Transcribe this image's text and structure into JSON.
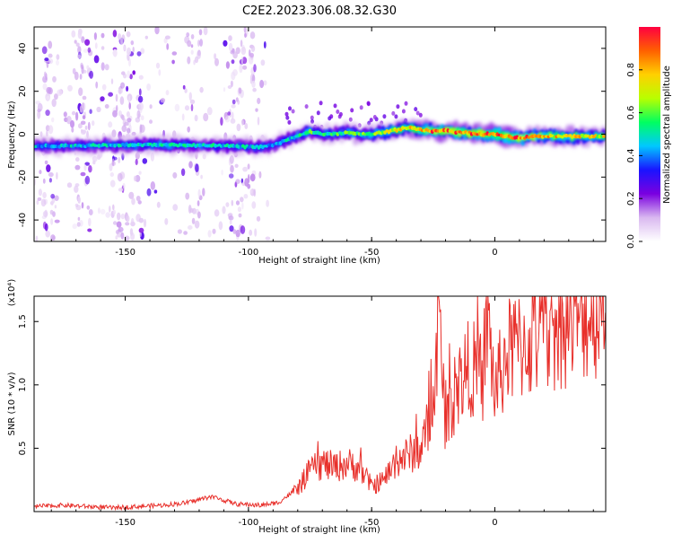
{
  "title": "C2E2.2023.306.08.32.G30",
  "colors": {
    "snr_line": "#e8302b",
    "axis": "#000000",
    "background": "#ffffff"
  },
  "colorbar": {
    "label": "Normalized spectral amplitude",
    "range": [
      0,
      1
    ],
    "ticks": [
      0.0,
      0.2,
      0.4,
      0.6,
      0.8
    ],
    "tick_labels": [
      "0.0",
      "0.2",
      "0.4",
      "0.6",
      "0.8"
    ],
    "stops": [
      "#ffffff",
      "#d9b8f0",
      "#7a00e0",
      "#1a14ff",
      "#00c8ff",
      "#00ff60",
      "#b8ff00",
      "#ffd000",
      "#ff6000",
      "#ff0040"
    ]
  },
  "chart_data": [
    {
      "type": "heatmap",
      "title": "C2E2.2023.306.08.32.G30",
      "xlabel": "Height of straight line (km)",
      "ylabel": "Frequency (Hz)",
      "xlim": [
        -187,
        45
      ],
      "ylim": [
        -50,
        50
      ],
      "x_ticks": [
        -150,
        -100,
        -50,
        0
      ],
      "x_tick_labels": [
        "-150",
        "-100",
        "-50",
        "0"
      ],
      "y_ticks": [
        -40,
        -20,
        0,
        20,
        40
      ],
      "y_tick_labels": [
        "-40",
        "-20",
        "0",
        "20",
        "40"
      ],
      "ridge": {
        "x": [
          -187,
          -170,
          -150,
          -130,
          -110,
          -95,
          -90,
          -85,
          -80,
          -75,
          -70,
          -65,
          -60,
          -55,
          -50,
          -45,
          -40,
          -35,
          -30,
          -25,
          -20,
          -15,
          -10,
          -5,
          0,
          5,
          10,
          15,
          20,
          30,
          45
        ],
        "frequency": [
          -5.5,
          -5.5,
          -5,
          -5,
          -5.5,
          -6,
          -5,
          -3,
          -1,
          1,
          0,
          0,
          1,
          0,
          0,
          1,
          2,
          3,
          2,
          1.5,
          1.5,
          1,
          0.5,
          0,
          0,
          -1,
          -2,
          -1,
          -1,
          -1,
          -1
        ],
        "amplitude": [
          0.45,
          0.5,
          0.5,
          0.55,
          0.5,
          0.5,
          0.45,
          0.5,
          0.55,
          0.6,
          0.55,
          0.6,
          0.6,
          0.6,
          0.65,
          0.7,
          0.75,
          0.85,
          0.8,
          0.95,
          0.95,
          0.9,
          0.9,
          0.95,
          1.0,
          0.9,
          0.95,
          0.85,
          0.8,
          0.8,
          0.75
        ]
      },
      "scattered_noise_region_x": [
        -187,
        -90
      ]
    },
    {
      "type": "line",
      "xlabel": "Height of straight line (km)",
      "ylabel": "SNR (10 * v/v)",
      "y_multiplier": "(x10⁴)",
      "xlim": [
        -187,
        45
      ],
      "ylim": [
        0,
        17000
      ],
      "x_ticks": [
        -150,
        -100,
        -50,
        0
      ],
      "x_tick_labels": [
        "-150",
        "-100",
        "-50",
        "0"
      ],
      "y_ticks": [
        5000,
        10000,
        15000
      ],
      "y_tick_labels": [
        "0.5",
        "1.0",
        "1.5"
      ],
      "series": [
        {
          "x": [
            -187,
            -175,
            -165,
            -155,
            -145,
            -135,
            -125,
            -115,
            -105,
            -95,
            -88,
            -80,
            -75,
            -70,
            -65,
            -60,
            -55,
            -50,
            -45,
            -40,
            -35,
            -30,
            -25,
            -23,
            -20,
            -15,
            -10,
            -5,
            -3,
            0,
            5,
            10,
            15,
            20,
            25,
            30,
            35,
            40,
            45
          ],
          "values": [
            400,
            500,
            400,
            300,
            400,
            500,
            700,
            1200,
            600,
            500,
            700,
            1800,
            3200,
            3800,
            3500,
            3800,
            3500,
            2000,
            2500,
            4000,
            4500,
            5000,
            8000,
            15500,
            7000,
            10000,
            11500,
            10500,
            15500,
            9500,
            12500,
            13000,
            13500,
            14000,
            14500,
            15000,
            15500,
            15800,
            16200
          ]
        }
      ]
    }
  ]
}
